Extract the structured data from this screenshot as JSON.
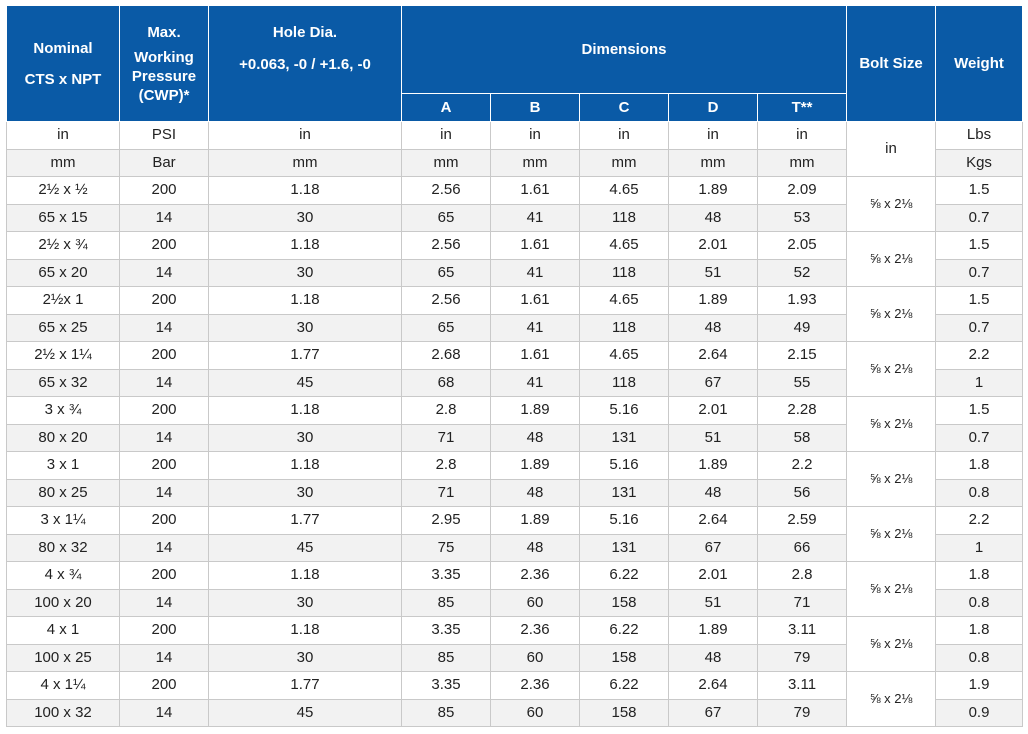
{
  "headers": {
    "nominal": [
      "Nominal",
      "CTS x NPT"
    ],
    "pressure": [
      "Max.",
      "Working",
      "Pressure",
      "(CWP)*"
    ],
    "hole": [
      "Hole Dia.",
      "+0.063, -0 /  +1.6, -0"
    ],
    "dimensions": "Dimensions",
    "dims": [
      "A",
      "B",
      "C",
      "D",
      "T**"
    ],
    "bolt": "Bolt Size",
    "weight": "Weight"
  },
  "units": {
    "imperial": {
      "nominal": "in",
      "pressure": "PSI",
      "hole": "in",
      "a": "in",
      "b": "in",
      "c": "in",
      "d": "in",
      "t": "in",
      "weight": "Lbs"
    },
    "metric": {
      "nominal": "mm",
      "pressure": "Bar",
      "hole": "mm",
      "a": "mm",
      "b": "mm",
      "c": "mm",
      "d": "mm",
      "t": "mm",
      "weight": "Kgs"
    },
    "bolt": "in"
  },
  "rows": [
    {
      "bolt": "⅝ x 2⅛",
      "imperial": {
        "nominal": "2½ x ½",
        "pressure": "200",
        "hole": "1.18",
        "a": "2.56",
        "b": "1.61",
        "c": "4.65",
        "d": "1.89",
        "t": "2.09",
        "weight": "1.5"
      },
      "metric": {
        "nominal": "65 x 15",
        "pressure": "14",
        "hole": "30",
        "a": "65",
        "b": "41",
        "c": "118",
        "d": "48",
        "t": "53",
        "weight": "0.7"
      }
    },
    {
      "bolt": "⅝ x 2⅛",
      "imperial": {
        "nominal": "2½ x ¾",
        "pressure": "200",
        "hole": "1.18",
        "a": "2.56",
        "b": "1.61",
        "c": "4.65",
        "d": "2.01",
        "t": "2.05",
        "weight": "1.5"
      },
      "metric": {
        "nominal": "65 x 20",
        "pressure": "14",
        "hole": "30",
        "a": "65",
        "b": "41",
        "c": "118",
        "d": "51",
        "t": "52",
        "weight": "0.7"
      }
    },
    {
      "bolt": "⅝ x 2⅛",
      "imperial": {
        "nominal": "2½x 1",
        "pressure": "200",
        "hole": "1.18",
        "a": "2.56",
        "b": "1.61",
        "c": "4.65",
        "d": "1.89",
        "t": "1.93",
        "weight": "1.5"
      },
      "metric": {
        "nominal": "65 x 25",
        "pressure": "14",
        "hole": "30",
        "a": "65",
        "b": "41",
        "c": "118",
        "d": "48",
        "t": "49",
        "weight": "0.7"
      }
    },
    {
      "bolt": "⅝ x 2⅛",
      "imperial": {
        "nominal": "2½ x 1¼",
        "pressure": "200",
        "hole": "1.77",
        "a": "2.68",
        "b": "1.61",
        "c": "4.65",
        "d": "2.64",
        "t": "2.15",
        "weight": "2.2"
      },
      "metric": {
        "nominal": "65 x 32",
        "pressure": "14",
        "hole": "45",
        "a": "68",
        "b": "41",
        "c": "118",
        "d": "67",
        "t": "55",
        "weight": "1"
      }
    },
    {
      "bolt": "⅝ x 2⅛",
      "imperial": {
        "nominal": "3 x ¾",
        "pressure": "200",
        "hole": "1.18",
        "a": "2.8",
        "b": "1.89",
        "c": "5.16",
        "d": "2.01",
        "t": "2.28",
        "weight": "1.5"
      },
      "metric": {
        "nominal": "80 x 20",
        "pressure": "14",
        "hole": "30",
        "a": "71",
        "b": "48",
        "c": "131",
        "d": "51",
        "t": "58",
        "weight": "0.7"
      }
    },
    {
      "bolt": "⅝ x 2⅛",
      "imperial": {
        "nominal": "3 x 1",
        "pressure": "200",
        "hole": "1.18",
        "a": "2.8",
        "b": "1.89",
        "c": "5.16",
        "d": "1.89",
        "t": "2.2",
        "weight": "1.8"
      },
      "metric": {
        "nominal": "80 x 25",
        "pressure": "14",
        "hole": "30",
        "a": "71",
        "b": "48",
        "c": "131",
        "d": "48",
        "t": "56",
        "weight": "0.8"
      }
    },
    {
      "bolt": "⅝ x 2⅛",
      "imperial": {
        "nominal": "3 x 1¼",
        "pressure": "200",
        "hole": "1.77",
        "a": "2.95",
        "b": "1.89",
        "c": "5.16",
        "d": "2.64",
        "t": "2.59",
        "weight": "2.2"
      },
      "metric": {
        "nominal": "80 x 32",
        "pressure": "14",
        "hole": "45",
        "a": "75",
        "b": "48",
        "c": "131",
        "d": "67",
        "t": "66",
        "weight": "1"
      }
    },
    {
      "bolt": "⅝ x 2⅛",
      "imperial": {
        "nominal": "4 x ¾",
        "pressure": "200",
        "hole": "1.18",
        "a": "3.35",
        "b": "2.36",
        "c": "6.22",
        "d": "2.01",
        "t": "2.8",
        "weight": "1.8"
      },
      "metric": {
        "nominal": "100 x 20",
        "pressure": "14",
        "hole": "30",
        "a": "85",
        "b": "60",
        "c": "158",
        "d": "51",
        "t": "71",
        "weight": "0.8"
      }
    },
    {
      "bolt": "⅝ x 2⅛",
      "imperial": {
        "nominal": "4 x 1",
        "pressure": "200",
        "hole": "1.18",
        "a": "3.35",
        "b": "2.36",
        "c": "6.22",
        "d": "1.89",
        "t": "3.11",
        "weight": "1.8"
      },
      "metric": {
        "nominal": "100 x 25",
        "pressure": "14",
        "hole": "30",
        "a": "85",
        "b": "60",
        "c": "158",
        "d": "48",
        "t": "79",
        "weight": "0.8"
      }
    },
    {
      "bolt": "⅝ x 2⅛",
      "imperial": {
        "nominal": "4 x 1¼",
        "pressure": "200",
        "hole": "1.77",
        "a": "3.35",
        "b": "2.36",
        "c": "6.22",
        "d": "2.64",
        "t": "3.11",
        "weight": "1.9"
      },
      "metric": {
        "nominal": "100 x 32",
        "pressure": "14",
        "hole": "45",
        "a": "85",
        "b": "60",
        "c": "158",
        "d": "67",
        "t": "79",
        "weight": "0.9"
      }
    }
  ]
}
